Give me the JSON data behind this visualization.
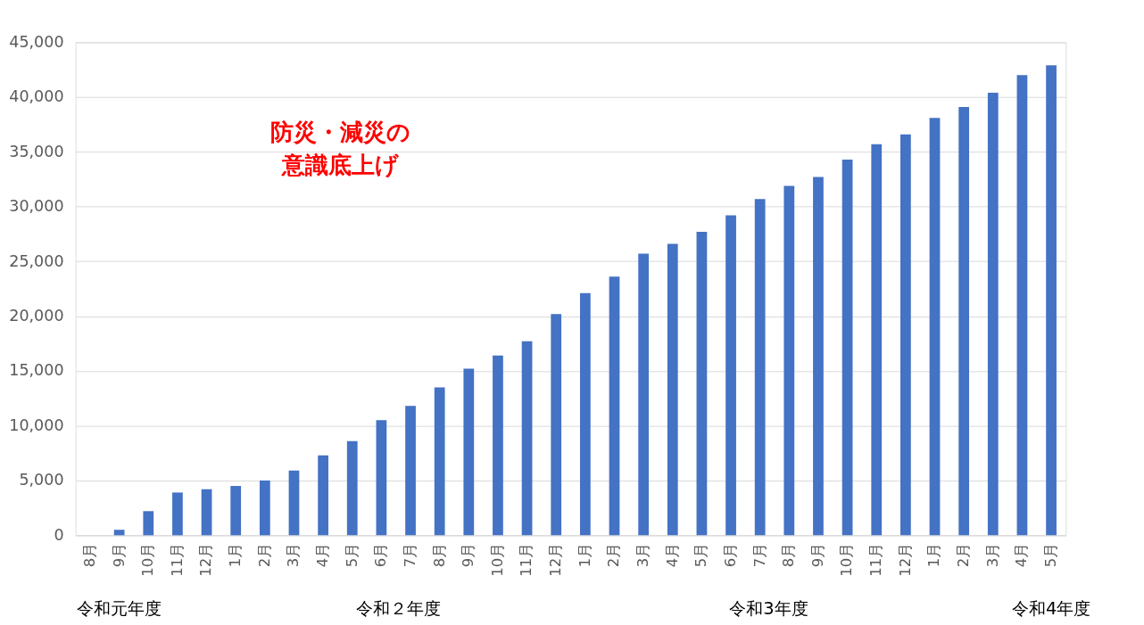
{
  "chart_data": {
    "type": "bar",
    "categories": [
      "8月",
      "9月",
      "10月",
      "11月",
      "12月",
      "1月",
      "2月",
      "3月",
      "4月",
      "5月",
      "6月",
      "7月",
      "8月",
      "9月",
      "10月",
      "11月",
      "12月",
      "1月",
      "2月",
      "3月",
      "4月",
      "5月",
      "6月",
      "7月",
      "8月",
      "9月",
      "10月",
      "11月",
      "12月",
      "1月",
      "2月",
      "3月",
      "4月",
      "5月"
    ],
    "values": [
      0,
      500,
      2200,
      3900,
      4200,
      4500,
      5000,
      5900,
      7300,
      8600,
      10500,
      11800,
      13500,
      15200,
      16400,
      17700,
      20200,
      22100,
      23600,
      25700,
      26600,
      27700,
      29200,
      30700,
      31900,
      32700,
      34300,
      35700,
      36600,
      38100,
      39100,
      40400,
      42000,
      42900
    ],
    "color": "#4472c4",
    "ylim": [
      0,
      45000
    ],
    "yticks": [
      0,
      {
        "value": 5000,
        "label": "5,000"
      },
      {
        "value": 10000,
        "label": "10,000"
      },
      {
        "value": 15000,
        "label": "15,000"
      },
      {
        "value": 20000,
        "label": "20,000"
      },
      {
        "value": 25000,
        "label": "25,000"
      },
      {
        "value": 30000,
        "label": "30,000"
      },
      {
        "value": 35000,
        "label": "35,000"
      },
      {
        "value": 40000,
        "label": "40,000"
      },
      {
        "value": 45000,
        "label": "45,000"
      }
    ],
    "grid": "y",
    "annotations": [
      "防災・減災の意識底上げ",
      "令和元年度",
      "令和２年度",
      "令和3年度",
      "令和4年度"
    ]
  }
}
